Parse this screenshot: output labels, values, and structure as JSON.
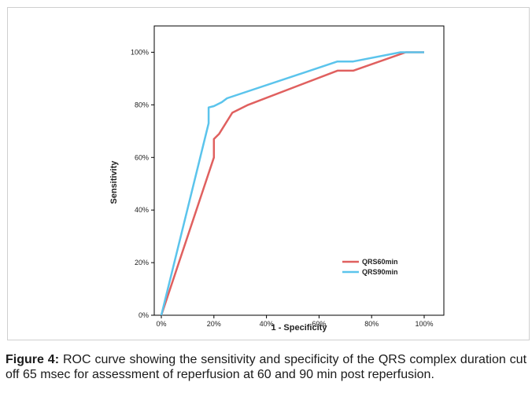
{
  "chart_data": {
    "type": "line",
    "xlabel": "1 - Specificity",
    "ylabel": "Sensitivity",
    "xlim": [
      0,
      100
    ],
    "ylim": [
      0,
      110
    ],
    "x_ticks": [
      "0%",
      "20%",
      "40%",
      "60%",
      "80%",
      "100%"
    ],
    "y_ticks": [
      "0%",
      "20%",
      "40%",
      "60%",
      "80%",
      "100%"
    ],
    "x_tick_values": [
      0,
      20,
      40,
      60,
      80,
      100
    ],
    "y_tick_values": [
      0,
      20,
      40,
      60,
      80,
      100
    ],
    "grid": false,
    "legend_position": "bottom-right",
    "series": [
      {
        "name": "QRS60min",
        "color": "#e0605f",
        "points": [
          [
            0,
            0
          ],
          [
            20,
            60
          ],
          [
            20,
            67
          ],
          [
            22,
            69
          ],
          [
            27,
            77
          ],
          [
            33,
            80
          ],
          [
            67,
            93
          ],
          [
            73,
            93
          ],
          [
            93,
            100
          ],
          [
            100,
            100
          ]
        ]
      },
      {
        "name": "QRS90min",
        "color": "#5bc4ec",
        "points": [
          [
            0,
            0
          ],
          [
            18,
            73
          ],
          [
            18,
            79
          ],
          [
            20,
            79.5
          ],
          [
            23,
            81
          ],
          [
            25,
            82.5
          ],
          [
            67,
            96.5
          ],
          [
            73,
            96.5
          ],
          [
            91,
            100
          ],
          [
            100,
            100
          ]
        ]
      }
    ]
  },
  "caption": {
    "label": "Figure 4:",
    "text": " ROC curve showing the sensitivity and specificity of the QRS complex duration cut off 65 msec for assessment of reperfusion at 60 and 90 min post reperfusion."
  }
}
